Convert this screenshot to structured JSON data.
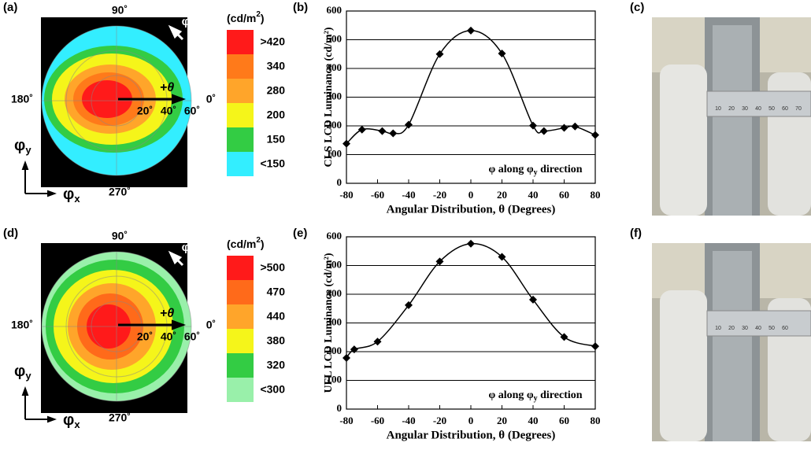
{
  "chart_data": [
    {
      "type": "polar_map",
      "panel_label": "(a)",
      "unit": {
        "text": "(cd/m",
        "sup": "2",
        "close": ")"
      },
      "legend": [
        {
          "label": ">420",
          "color": "#ff1a1a"
        },
        {
          "label": "340",
          "color": "#ff7a1a"
        },
        {
          "label": "280",
          "color": "#ffa52a"
        },
        {
          "label": "200",
          "color": "#f5f51a"
        },
        {
          "label": "150",
          "color": "#33cc44"
        },
        {
          "label": "<150",
          "color": "#33eeff"
        }
      ],
      "angle_labels": {
        "top": "90˚",
        "left": "180˚",
        "right": "0˚",
        "bottom": "270˚"
      },
      "theta_label": "+θ",
      "radial_labels": [
        "20˚",
        "40˚",
        "60˚"
      ],
      "phi_label": "φ",
      "axes": {
        "y": {
          "base": "φ",
          "sub": "y"
        },
        "x": {
          "base": "φ",
          "sub": "x"
        }
      }
    },
    {
      "type": "line",
      "panel_label": "(b)",
      "color": "#000000",
      "ylabel": "CLS LCD Luminance (cd/m²)",
      "xlabel": "Angular Distribution, θ (Degrees)",
      "annotation": {
        "text": "φ along φ",
        "sub": "y",
        "tail": " direction"
      },
      "x": [
        -80,
        -70,
        -57,
        -50,
        -40,
        -20,
        0,
        20,
        40,
        47,
        60,
        67,
        80
      ],
      "values": [
        138,
        187,
        182,
        174,
        204,
        450,
        532,
        452,
        201,
        182,
        193,
        198,
        168
      ],
      "xlim": [
        -80,
        80
      ],
      "ylim": [
        0,
        600
      ],
      "xticks": [
        -80,
        -60,
        -40,
        -20,
        0,
        20,
        40,
        60,
        80
      ],
      "yticks": [
        0,
        100,
        200,
        300,
        400,
        500,
        600
      ],
      "grid": true
    },
    {
      "type": "photo",
      "panel_label": "(c)",
      "ruler_labels": [
        "10",
        "20",
        "30",
        "40",
        "50",
        "60",
        "70"
      ]
    },
    {
      "type": "polar_map",
      "panel_label": "(d)",
      "unit": {
        "text": "(cd/m",
        "sup": "2",
        "close": ")"
      },
      "legend": [
        {
          "label": ">500",
          "color": "#ff1a1a"
        },
        {
          "label": "470",
          "color": "#ff6a1a"
        },
        {
          "label": "440",
          "color": "#ffa52a"
        },
        {
          "label": "380",
          "color": "#f5f51a"
        },
        {
          "label": "320",
          "color": "#33cc44"
        },
        {
          "label": "<300",
          "color": "#99f0aa"
        }
      ],
      "angle_labels": {
        "top": "90˚",
        "left": "180˚",
        "right": "0˚",
        "bottom": "270˚"
      },
      "theta_label": "+θ",
      "radial_labels": [
        "20˚",
        "40˚",
        "60˚"
      ],
      "phi_label": "φ",
      "axes": {
        "y": {
          "base": "φ",
          "sub": "y"
        },
        "x": {
          "base": "φ",
          "sub": "x"
        }
      }
    },
    {
      "type": "line",
      "panel_label": "(e)",
      "color": "#000000",
      "ylabel": "UFL LCD Luminance (cd/m²)",
      "xlabel": "Angular Distribution, θ (Degrees)",
      "annotation": {
        "text": "φ along φ",
        "sub": "y",
        "tail": " direction"
      },
      "x": [
        -80,
        -75,
        -60,
        -40,
        -20,
        0,
        20,
        40,
        60,
        80
      ],
      "values": [
        178,
        208,
        235,
        362,
        514,
        576,
        530,
        381,
        251,
        219
      ],
      "xlim": [
        -80,
        80
      ],
      "ylim": [
        0,
        600
      ],
      "xticks": [
        -80,
        -60,
        -40,
        -20,
        0,
        20,
        40,
        60,
        80
      ],
      "yticks": [
        0,
        100,
        200,
        300,
        400,
        500,
        600
      ],
      "grid": true
    },
    {
      "type": "photo",
      "panel_label": "(f)",
      "ruler_labels": [
        "10",
        "20",
        "30",
        "40",
        "50",
        "60"
      ]
    }
  ]
}
